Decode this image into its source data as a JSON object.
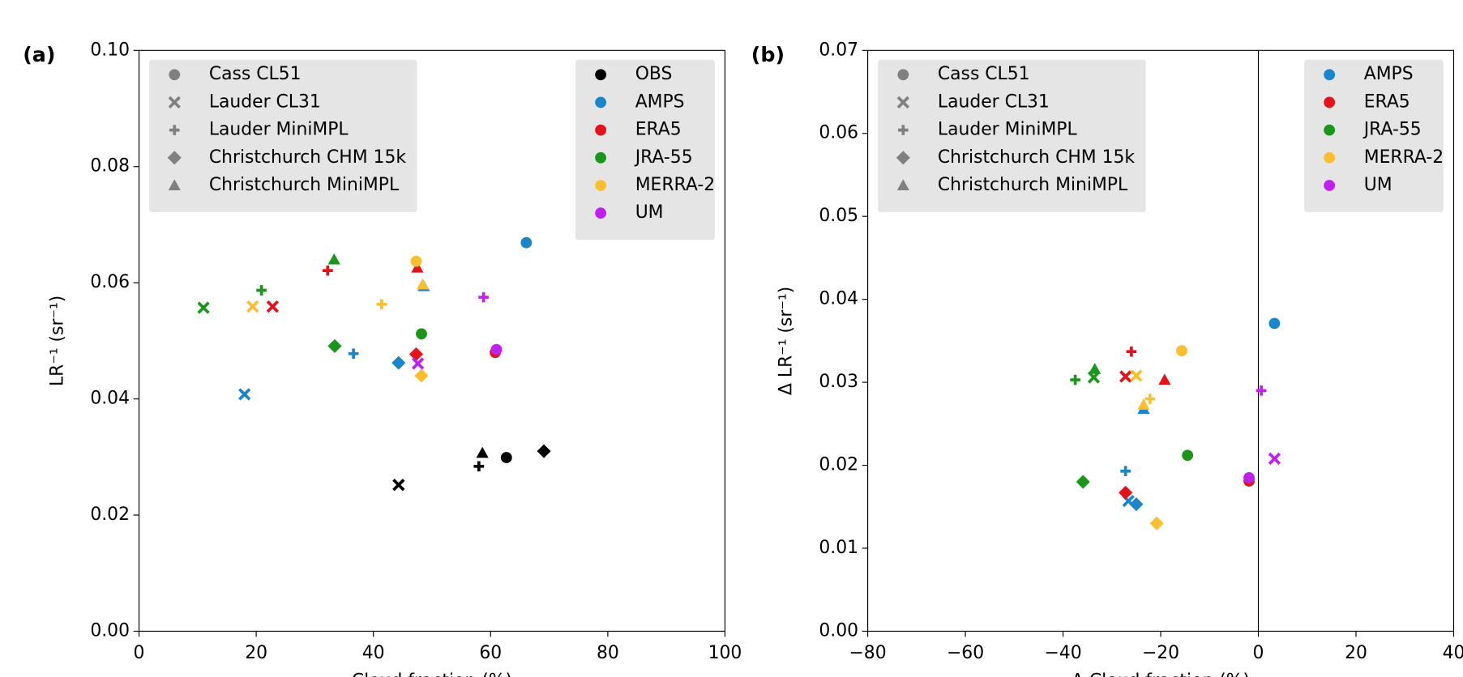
{
  "chart_data": [
    {
      "type": "scatter",
      "panel_label": "(a)",
      "xlabel": "Cloud fraction (%)",
      "ylabel": "LR⁻¹ (sr⁻¹)",
      "xlim": [
        0,
        100
      ],
      "xticks": [
        0,
        20,
        40,
        60,
        80,
        100
      ],
      "ylim": [
        0,
        0.1
      ],
      "yticks": [
        {
          "value": 0,
          "label": "0.00"
        },
        0.02,
        0.04,
        0.06,
        0.08,
        {
          "value": 0.1,
          "label": "0.10"
        }
      ],
      "marker_legend": "upper left",
      "legend": "upper right",
      "markers": [
        {
          "name": "Cass CL51",
          "marker": "circle"
        },
        {
          "name": "Lauder CL31",
          "marker": "x"
        },
        {
          "name": "Lauder MiniMPL",
          "marker": "plus"
        },
        {
          "name": "Christchurch CHM 15k",
          "marker": "diamond"
        },
        {
          "name": "Christchurch MiniMPL",
          "marker": "triangle"
        }
      ],
      "series": [
        {
          "name": "OBS",
          "color": "#000000",
          "x": [
            62.7,
            44.3,
            58.0,
            69.1,
            58.6
          ],
          "y": [
            0.0299,
            0.0252,
            0.0284,
            0.031,
            0.0307
          ]
        },
        {
          "name": "AMPS",
          "color": "#1a85c9",
          "x": [
            66.1,
            18.0,
            36.6,
            44.3,
            48.6
          ],
          "y": [
            0.0669,
            0.0408,
            0.0478,
            0.0462,
            0.0594
          ]
        },
        {
          "name": "ERA5",
          "color": "#e3121b",
          "x": [
            60.8,
            22.8,
            32.2,
            47.3,
            47.5
          ],
          "y": [
            0.048,
            0.0559,
            0.0621,
            0.0477,
            0.0626
          ]
        },
        {
          "name": "JRA-55",
          "color": "#1a961a",
          "x": [
            48.2,
            11.0,
            20.9,
            33.4,
            33.3
          ],
          "y": [
            0.0512,
            0.0557,
            0.0587,
            0.0491,
            0.064
          ]
        },
        {
          "name": "MERRA-2",
          "color": "#fbbf2d",
          "x": [
            47.3,
            19.4,
            41.4,
            48.2,
            48.4
          ],
          "y": [
            0.0637,
            0.0559,
            0.0563,
            0.044,
            0.0597
          ]
        },
        {
          "name": "UM",
          "color": "#c020ef",
          "x": [
            61.0,
            47.6,
            58.8,
            null,
            null
          ],
          "y": [
            0.0485,
            0.0461,
            0.0575,
            null,
            null
          ]
        }
      ]
    },
    {
      "type": "scatter",
      "panel_label": "(b)",
      "xlabel": "Δ Cloud fraction (%)",
      "ylabel": "Δ LR⁻¹ (sr⁻¹)",
      "xlim": [
        -80,
        40
      ],
      "xticks": [
        {
          "value": -80,
          "label": "−80"
        },
        {
          "value": -60,
          "label": "−60"
        },
        {
          "value": -40,
          "label": "−40"
        },
        {
          "value": -20,
          "label": "−20"
        },
        0,
        20,
        40
      ],
      "ylim": [
        0,
        0.07
      ],
      "yticks": [
        {
          "value": 0,
          "label": "0.00"
        },
        0.01,
        0.02,
        0.03,
        0.04,
        0.05,
        0.06,
        0.07
      ],
      "vlines": [
        0
      ],
      "marker_legend": "upper left",
      "legend": "upper right",
      "markers": [
        {
          "name": "Cass CL51",
          "marker": "circle"
        },
        {
          "name": "Lauder CL31",
          "marker": "x"
        },
        {
          "name": "Lauder MiniMPL",
          "marker": "plus"
        },
        {
          "name": "Christchurch CHM 15k",
          "marker": "diamond"
        },
        {
          "name": "Christchurch MiniMPL",
          "marker": "triangle"
        }
      ],
      "series": [
        {
          "name": "AMPS",
          "color": "#1a85c9",
          "x": [
            3.3,
            -26.6,
            -27.2,
            -25.0,
            -23.5
          ],
          "y": [
            0.0371,
            0.0157,
            0.0193,
            0.0153,
            0.0268
          ]
        },
        {
          "name": "ERA5",
          "color": "#e3121b",
          "x": [
            -1.9,
            -27.2,
            -26.0,
            -27.2,
            -19.2
          ],
          "y": [
            0.0181,
            0.0307,
            0.0337,
            0.0167,
            0.0303
          ]
        },
        {
          "name": "JRA-55",
          "color": "#1a961a",
          "x": [
            -14.5,
            -33.7,
            -37.5,
            -35.9,
            -33.5
          ],
          "y": [
            0.0212,
            0.0306,
            0.0303,
            0.018,
            0.0316
          ]
        },
        {
          "name": "MERRA-2",
          "color": "#fbbf2d",
          "x": [
            -15.7,
            -25.0,
            -22.2,
            -20.8,
            -23.5
          ],
          "y": [
            0.0338,
            0.0308,
            0.028,
            0.013,
            0.0273
          ]
        },
        {
          "name": "UM",
          "color": "#c020ef",
          "x": [
            -1.9,
            3.3,
            0.6,
            null,
            null
          ],
          "y": [
            0.0185,
            0.0208,
            0.029,
            null,
            null
          ]
        }
      ]
    }
  ]
}
